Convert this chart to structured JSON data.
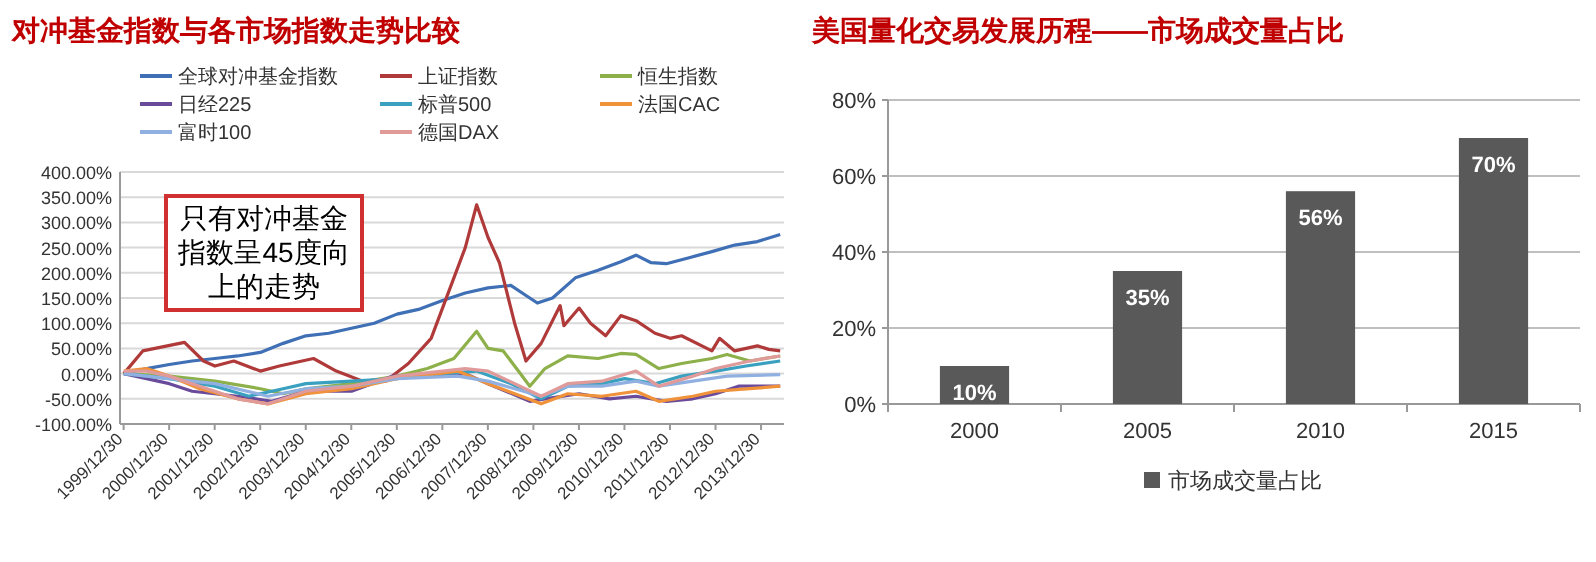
{
  "chart_data": [
    {
      "type": "line",
      "title": "对冲基金指数与各市场指数走势比较",
      "annotations": [
        "只有对冲基金指数呈45度向上的走势"
      ],
      "legend": "top",
      "grid": "y",
      "marker": "none",
      "line_style": "solid",
      "xlim": [
        "1999-12",
        "2014-07"
      ],
      "xticks": [
        {
          "value": "1999-12-30",
          "label": "1999/12/30"
        },
        {
          "value": "2000-12-30",
          "label": "2000/12/30"
        },
        {
          "value": "2001-12-30",
          "label": "2001/12/30"
        },
        {
          "value": "2002-12-30",
          "label": "2002/12/30"
        },
        {
          "value": "2003-12-30",
          "label": "2003/12/30"
        },
        {
          "value": "2004-12-30",
          "label": "2004/12/30"
        },
        {
          "value": "2005-12-30",
          "label": "2005/12/30"
        },
        {
          "value": "2006-12-30",
          "label": "2006/12/30"
        },
        {
          "value": "2007-12-30",
          "label": "2007/12/30"
        },
        {
          "value": "2008-12-30",
          "label": "2008/12/30"
        },
        {
          "value": "2009-12-30",
          "label": "2009/12/30"
        },
        {
          "value": "2010-12-30",
          "label": "2010/12/30"
        },
        {
          "value": "2011-12-30",
          "label": "2011/12/30"
        },
        {
          "value": "2012-12-30",
          "label": "2012/12/30"
        },
        {
          "value": "2013-12-30",
          "label": "2013/12/30"
        }
      ],
      "ylim": [
        -100,
        400
      ],
      "yticks": [
        {
          "value": -100,
          "label": "-100.00%"
        },
        {
          "value": -50,
          "label": "-50.00%"
        },
        {
          "value": 0,
          "label": "0.00%"
        },
        {
          "value": 50,
          "label": "50.00%"
        },
        {
          "value": 100,
          "label": "100.00%"
        },
        {
          "value": 150,
          "label": "150.00%"
        },
        {
          "value": 200,
          "label": "200.00%"
        },
        {
          "value": 250,
          "label": "250.00%"
        },
        {
          "value": 300,
          "label": "300.00%"
        },
        {
          "value": 350,
          "label": "350.00%"
        },
        {
          "value": 400,
          "label": "400.00%"
        }
      ],
      "series": [
        {
          "name": "全球对冲基金指数",
          "color": "#3f6fb5",
          "x": [
            "2000-01",
            "2000-07",
            "2001-01",
            "2001-07",
            "2002-01",
            "2002-07",
            "2003-01",
            "2003-07",
            "2004-01",
            "2004-07",
            "2005-01",
            "2005-07",
            "2006-01",
            "2006-07",
            "2007-01",
            "2007-07",
            "2008-01",
            "2008-07",
            "2008-11",
            "2009-02",
            "2009-06",
            "2009-12",
            "2010-06",
            "2010-12",
            "2011-04",
            "2011-08",
            "2011-12",
            "2012-06",
            "2012-12",
            "2013-06",
            "2013-12",
            "2014-06"
          ],
          "values": [
            0,
            10,
            18,
            25,
            30,
            35,
            42,
            60,
            75,
            80,
            90,
            100,
            118,
            128,
            145,
            160,
            170,
            175,
            155,
            140,
            150,
            190,
            205,
            222,
            235,
            220,
            218,
            230,
            242,
            255,
            262,
            276
          ]
        },
        {
          "name": "上证指数",
          "color": "#b03a3a",
          "x": [
            "2000-01",
            "2000-06",
            "2001-05",
            "2001-10",
            "2002-01",
            "2002-06",
            "2003-01",
            "2003-06",
            "2004-03",
            "2004-09",
            "2005-04",
            "2005-10",
            "2006-04",
            "2006-10",
            "2007-01",
            "2007-04",
            "2007-07",
            "2007-10",
            "2008-01",
            "2008-04",
            "2008-08",
            "2008-11",
            "2009-03",
            "2009-08",
            "2009-09",
            "2010-01",
            "2010-04",
            "2010-08",
            "2010-12",
            "2011-04",
            "2011-09",
            "2012-01",
            "2012-04",
            "2012-12",
            "2013-02",
            "2013-06",
            "2013-12",
            "2014-03",
            "2014-06"
          ],
          "values": [
            0,
            45,
            62,
            25,
            15,
            25,
            5,
            15,
            30,
            5,
            -15,
            -15,
            20,
            70,
            130,
            190,
            250,
            335,
            270,
            220,
            100,
            25,
            60,
            135,
            95,
            130,
            100,
            75,
            115,
            105,
            80,
            70,
            75,
            45,
            70,
            45,
            55,
            48,
            45
          ]
        },
        {
          "name": "恒生指数",
          "color": "#8db04a",
          "x": [
            "2000-01",
            "2001-01",
            "2002-01",
            "2003-01",
            "2003-07",
            "2004-01",
            "2005-01",
            "2006-01",
            "2006-09",
            "2007-04",
            "2007-10",
            "2008-01",
            "2008-05",
            "2008-09",
            "2008-12",
            "2009-04",
            "2009-10",
            "2010-06",
            "2010-12",
            "2011-04",
            "2011-10",
            "2012-04",
            "2012-12",
            "2013-04",
            "2013-10",
            "2014-06"
          ],
          "values": [
            0,
            -5,
            -15,
            -30,
            -40,
            -30,
            -20,
            -5,
            10,
            30,
            84,
            50,
            45,
            5,
            -25,
            10,
            35,
            30,
            40,
            38,
            10,
            20,
            30,
            38,
            25,
            35
          ]
        },
        {
          "name": "日经225",
          "color": "#6a4a9a",
          "x": [
            "2000-01",
            "2000-07",
            "2001-01",
            "2001-07",
            "2002-01",
            "2002-07",
            "2003-04",
            "2004-01",
            "2005-01",
            "2005-12",
            "2006-07",
            "2007-07",
            "2008-01",
            "2008-12",
            "2009-04",
            "2010-01",
            "2010-09",
            "2011-04",
            "2011-12",
            "2012-07",
            "2013-01",
            "2013-07",
            "2014-06"
          ],
          "values": [
            0,
            -10,
            -20,
            -35,
            -40,
            -45,
            -55,
            -35,
            -35,
            -5,
            -5,
            0,
            -20,
            -55,
            -50,
            -40,
            -50,
            -45,
            -55,
            -50,
            -40,
            -25,
            -25
          ]
        },
        {
          "name": "标普500",
          "color": "#3aa0c0",
          "x": [
            "2000-01",
            "2001-01",
            "2002-01",
            "2002-10",
            "2003-07",
            "2004-01",
            "2005-01",
            "2006-01",
            "2007-01",
            "2007-10",
            "2008-07",
            "2009-03",
            "2009-10",
            "2010-07",
            "2011-01",
            "2011-09",
            "2012-04",
            "2013-01",
            "2013-09",
            "2014-06"
          ],
          "values": [
            0,
            -10,
            -25,
            -45,
            -30,
            -20,
            -15,
            -10,
            0,
            5,
            -20,
            -50,
            -25,
            -20,
            -10,
            -20,
            -5,
            5,
            15,
            25
          ]
        },
        {
          "name": "法国CAC",
          "color": "#f0923a",
          "x": [
            "2000-01",
            "2000-07",
            "2001-01",
            "2001-09",
            "2002-07",
            "2003-03",
            "2004-01",
            "2005-01",
            "2006-01",
            "2007-05",
            "2008-01",
            "2009-03",
            "2009-10",
            "2010-07",
            "2011-04",
            "2011-10",
            "2012-07",
            "2013-01",
            "2013-10",
            "2014-06"
          ],
          "values": [
            5,
            10,
            -5,
            -30,
            -50,
            -60,
            -40,
            -30,
            -10,
            5,
            -20,
            -60,
            -40,
            -45,
            -35,
            -55,
            -45,
            -35,
            -30,
            -25
          ]
        },
        {
          "name": "富时100",
          "color": "#8fb0e0",
          "x": [
            "2000-01",
            "2001-01",
            "2002-01",
            "2003-03",
            "2004-01",
            "2005-01",
            "2006-01",
            "2007-05",
            "2008-01",
            "2009-03",
            "2009-10",
            "2010-07",
            "2011-04",
            "2011-10",
            "2012-07",
            "2013-04",
            "2014-06"
          ],
          "values": [
            0,
            -10,
            -20,
            -45,
            -30,
            -25,
            -10,
            -5,
            -15,
            -45,
            -25,
            -25,
            -15,
            -25,
            -15,
            -5,
            -2
          ]
        },
        {
          "name": "德国DAX",
          "color": "#e09a9a",
          "x": [
            "2000-01",
            "2000-07",
            "2001-01",
            "2001-09",
            "2002-07",
            "2003-03",
            "2004-01",
            "2005-01",
            "2006-01",
            "2007-07",
            "2008-01",
            "2009-03",
            "2009-10",
            "2010-07",
            "2011-04",
            "2011-10",
            "2012-07",
            "2013-01",
            "2013-10",
            "2014-06"
          ],
          "values": [
            5,
            5,
            -5,
            -25,
            -50,
            -60,
            -35,
            -25,
            -5,
            10,
            5,
            -45,
            -20,
            -15,
            5,
            -25,
            -5,
            10,
            25,
            35
          ]
        }
      ]
    },
    {
      "type": "bar",
      "title": "美国量化交易发展历程——市场成交量占比",
      "categories": [
        "2000",
        "2005",
        "2010",
        "2015"
      ],
      "legend": "bottom",
      "grid": "y",
      "ylim": [
        0,
        80
      ],
      "yticks": [
        {
          "value": 0,
          "label": "0%"
        },
        {
          "value": 20,
          "label": "20%"
        },
        {
          "value": 40,
          "label": "40%"
        },
        {
          "value": 60,
          "label": "60%"
        },
        {
          "value": 80,
          "label": "80%"
        }
      ],
      "series": [
        {
          "name": "市场成交量占比",
          "color": "#595959",
          "values": [
            10,
            35,
            56,
            70
          ],
          "value_labels": [
            "10%",
            "35%",
            "56%",
            "70%"
          ]
        }
      ]
    }
  ]
}
